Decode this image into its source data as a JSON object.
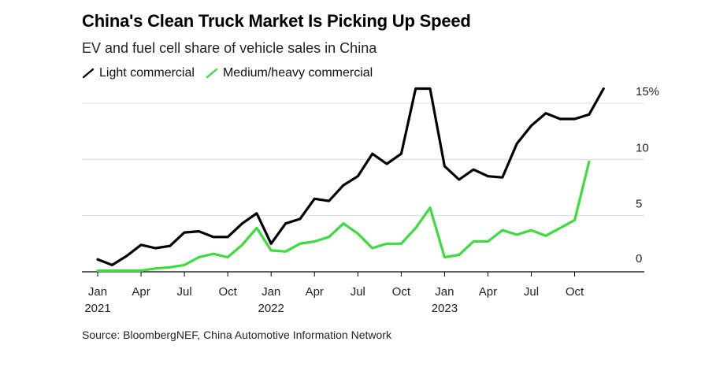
{
  "title": "China's Clean Truck Market Is Picking Up Speed",
  "subtitle": "EV and fuel cell share of vehicle sales in China",
  "source": "Source: BloombergNEF, China Automotive Information Network",
  "colors": {
    "light": "#000000",
    "heavy": "#3ddc3d",
    "grid": "#dcdcdc"
  },
  "chart_data": {
    "type": "line",
    "ylim": [
      0,
      15
    ],
    "y_ticks": [
      {
        "value": 15,
        "label": "15%"
      },
      {
        "value": 10,
        "label": "10"
      },
      {
        "value": 5,
        "label": "5"
      },
      {
        "value": 0,
        "label": "0"
      }
    ],
    "x_ticks": [
      {
        "month": 0,
        "label": "Jan",
        "year": "2021"
      },
      {
        "month": 3,
        "label": "Apr"
      },
      {
        "month": 6,
        "label": "Jul"
      },
      {
        "month": 9,
        "label": "Oct"
      },
      {
        "month": 12,
        "label": "Jan",
        "year": "2022"
      },
      {
        "month": 15,
        "label": "Apr"
      },
      {
        "month": 18,
        "label": "Jul"
      },
      {
        "month": 21,
        "label": "Oct"
      },
      {
        "month": 24,
        "label": "Jan",
        "year": "2023"
      },
      {
        "month": 27,
        "label": "Apr"
      },
      {
        "month": 30,
        "label": "Jul"
      },
      {
        "month": 33,
        "label": "Oct"
      }
    ],
    "x": [
      "2021-01",
      "2021-02",
      "2021-03",
      "2021-04",
      "2021-05",
      "2021-06",
      "2021-07",
      "2021-08",
      "2021-09",
      "2021-10",
      "2021-11",
      "2021-12",
      "2022-01",
      "2022-02",
      "2022-03",
      "2022-04",
      "2022-05",
      "2022-06",
      "2022-07",
      "2022-08",
      "2022-09",
      "2022-10",
      "2022-11",
      "2022-12",
      "2023-01",
      "2023-02",
      "2023-03",
      "2023-04",
      "2023-05",
      "2023-06",
      "2023-07",
      "2023-08",
      "2023-09",
      "2023-10",
      "2023-11",
      "2023-12"
    ],
    "series": [
      {
        "name": "Light commercial",
        "color": "#000000",
        "values": [
          1.1,
          0.6,
          1.4,
          2.4,
          2.1,
          2.3,
          3.5,
          3.6,
          3.1,
          3.1,
          4.3,
          5.2,
          2.5,
          4.3,
          4.7,
          6.5,
          6.3,
          7.7,
          8.5,
          10.5,
          9.6,
          10.5,
          16.3,
          16.3,
          9.4,
          8.2,
          9.1,
          8.5,
          8.4,
          11.4,
          13.0,
          14.1,
          13.6,
          13.6,
          14.0,
          16.3
        ]
      },
      {
        "name": "Medium/heavy commercial",
        "color": "#3ddc3d",
        "values": [
          0.1,
          0.1,
          0.1,
          0.1,
          0.3,
          0.4,
          0.6,
          1.3,
          1.6,
          1.3,
          2.4,
          3.9,
          1.9,
          1.8,
          2.5,
          2.7,
          3.1,
          4.3,
          3.4,
          2.1,
          2.5,
          2.5,
          3.9,
          5.7,
          1.3,
          1.5,
          2.7,
          2.7,
          3.7,
          3.3,
          3.7,
          3.2,
          3.9,
          4.6,
          9.8,
          null
        ]
      }
    ]
  }
}
